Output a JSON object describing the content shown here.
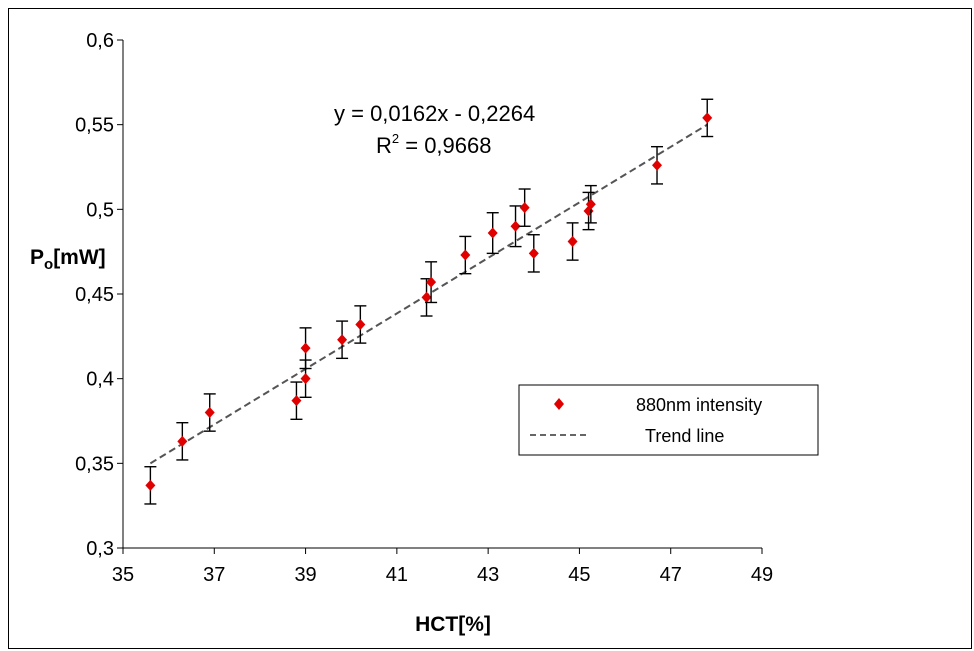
{
  "chart_data": {
    "type": "scatter",
    "title": "",
    "xlabel": "HCT[%]",
    "ylabel": "Po[mW]",
    "ylabel_main": "P",
    "ylabel_sub": "o",
    "ylabel_unit": "[mW]",
    "xlim": [
      35,
      49
    ],
    "ylim": [
      0.3,
      0.6
    ],
    "x_ticks": [
      "35",
      "37",
      "39",
      "41",
      "43",
      "45",
      "47",
      "49"
    ],
    "y_ticks": [
      "0,3",
      "0,35",
      "0,4",
      "0,45",
      "0,5",
      "0,55",
      "0,6"
    ],
    "grid": false,
    "legend_position": "right-middle",
    "series": [
      {
        "name": "880nm intensity",
        "color": "#e00000",
        "marker": "diamond",
        "x": [
          35.6,
          36.3,
          36.9,
          38.8,
          39.0,
          39.0,
          39.8,
          40.2,
          41.65,
          41.75,
          42.5,
          43.1,
          43.6,
          43.8,
          44.0,
          44.85,
          45.2,
          45.25,
          46.7,
          47.8
        ],
        "y": [
          0.337,
          0.363,
          0.38,
          0.387,
          0.4,
          0.418,
          0.423,
          0.432,
          0.448,
          0.457,
          0.473,
          0.486,
          0.49,
          0.501,
          0.474,
          0.481,
          0.499,
          0.503,
          0.526,
          0.554
        ],
        "error": [
          0.011,
          0.011,
          0.011,
          0.011,
          0.011,
          0.012,
          0.011,
          0.011,
          0.011,
          0.012,
          0.011,
          0.012,
          0.012,
          0.011,
          0.011,
          0.011,
          0.011,
          0.011,
          0.011,
          0.011
        ]
      },
      {
        "name": "Trend line",
        "color": "#555555",
        "style": "dashed",
        "x": [
          35.6,
          47.8
        ],
        "y": [
          0.35,
          0.55
        ]
      }
    ],
    "annotations": {
      "equation": "y = 0,0162x - 0,2264",
      "r2_label": "R",
      "r2_sup": "2",
      "r2_value": " = 0,9668"
    }
  },
  "colors": {
    "marker": "#e00000",
    "trend": "#555555",
    "axis": "#000000"
  }
}
